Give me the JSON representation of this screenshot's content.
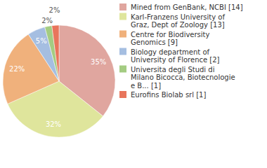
{
  "chart_data": {
    "type": "pie",
    "categories": [
      "Mined from GenBank, NCBI [14]",
      "Karl-Franzens University of Graz, Dept of Zoology [13]",
      "Centre for Biodiversity Genomics [9]",
      "Biology department of University of Florence [2]",
      "Universita degli Studi di Milano Bicocca, Biotecnologie e B... [1]",
      "Eurofins Biolab srl [1]"
    ],
    "values": [
      35,
      32,
      22,
      5,
      2,
      2
    ],
    "value_labels": [
      "35%",
      "32%",
      "22%",
      "5%",
      "2%",
      "2%"
    ],
    "colors": [
      "#e0a69f",
      "#dfe59c",
      "#f0b17c",
      "#a5bee1",
      "#a4cc82",
      "#e8755c"
    ],
    "data_labels": true,
    "legend": "right"
  }
}
